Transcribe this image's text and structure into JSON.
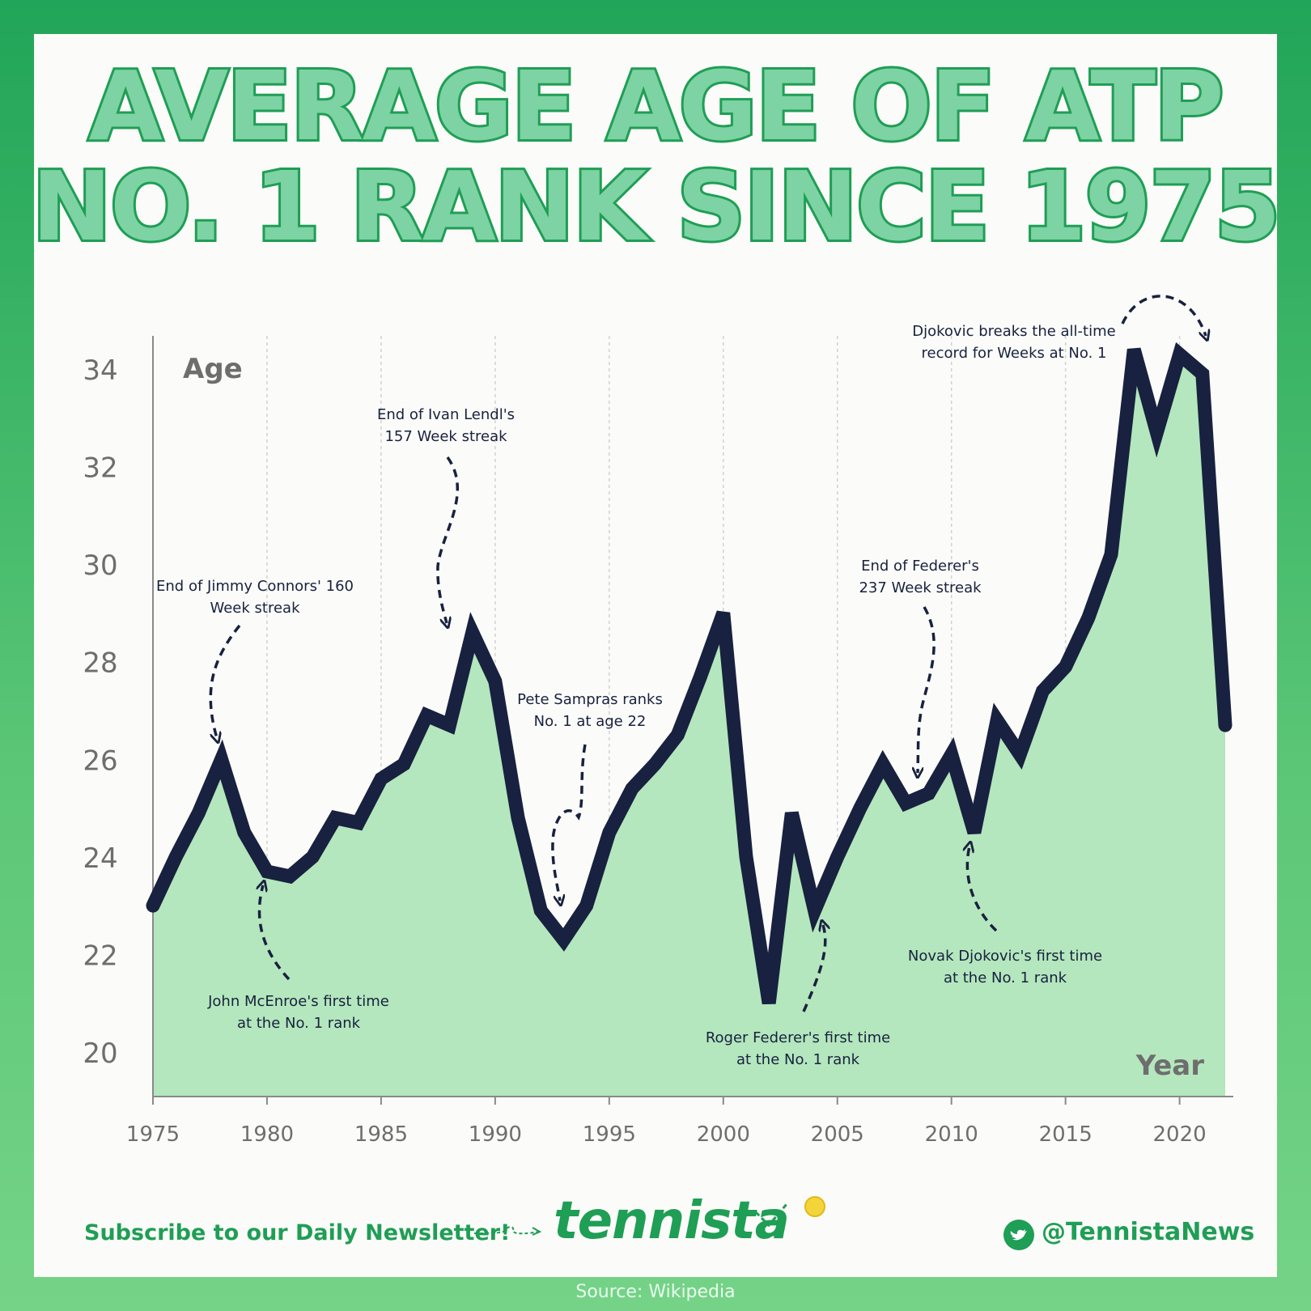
{
  "title_line1": "AVERAGE AGE OF ATP",
  "title_line2": "NO. 1 RANK SINCE 1975",
  "colors": {
    "line": "#18213f",
    "area": "#b4e7bd",
    "brand": "#1f9e55",
    "grid": "#cfd2cf",
    "axis_text": "#6e6e6e"
  },
  "chart_data": {
    "type": "area",
    "title": "AVERAGE AGE OF ATP NO. 1 RANK SINCE 1975",
    "xlabel": "Year",
    "ylabel": "Age",
    "xlim": [
      1975,
      2022
    ],
    "ylim": [
      19,
      34.7
    ],
    "x_ticks": [
      1975,
      1980,
      1985,
      1990,
      1995,
      2000,
      2005,
      2010,
      2015,
      2020
    ],
    "y_ticks": [
      20,
      22,
      24,
      26,
      28,
      30,
      32,
      34
    ],
    "series": [
      {
        "name": "Average age of ATP No. 1",
        "x": [
          1975,
          1976,
          1977,
          1978,
          1979,
          1980,
          1981,
          1982,
          1983,
          1984,
          1985,
          1986,
          1987,
          1988,
          1989,
          1990,
          1991,
          1992,
          1993,
          1994,
          1995,
          1996,
          1997,
          1998,
          1999,
          2000,
          2001,
          2002,
          2003,
          2004,
          2005,
          2006,
          2007,
          2008,
          2009,
          2010,
          2011,
          2012,
          2013,
          2014,
          2015,
          2016,
          2017,
          2018,
          2019,
          2020,
          2021,
          2022
        ],
        "y": [
          23.0,
          24.0,
          24.9,
          26.0,
          24.5,
          23.7,
          23.6,
          24.0,
          24.8,
          24.7,
          25.6,
          25.9,
          26.9,
          26.7,
          28.6,
          27.6,
          24.8,
          22.9,
          22.3,
          23.0,
          24.5,
          25.4,
          25.9,
          26.5,
          27.7,
          29.0,
          24.0,
          21.0,
          24.9,
          22.9,
          24.0,
          25.0,
          25.9,
          25.1,
          25.3,
          26.1,
          24.5,
          26.8,
          26.1,
          27.4,
          27.9,
          28.9,
          30.2,
          34.4,
          32.7,
          34.3,
          33.9,
          26.7
        ]
      }
    ],
    "annotations": [
      {
        "text_line1": "End of Jimmy Connors' 160",
        "text_line2": "Week streak",
        "year": 1978
      },
      {
        "text_line1": "John McEnroe's first time",
        "text_line2": "at the No. 1 rank",
        "year": 1980
      },
      {
        "text_line1": "End of Ivan Lendl's",
        "text_line2": "157 Week streak",
        "year": 1988
      },
      {
        "text_line1": "Pete Sampras ranks",
        "text_line2": "No. 1 at age 22",
        "year": 1993
      },
      {
        "text_line1": "Roger Federer's first time",
        "text_line2": "at the No. 1 rank",
        "year": 2004
      },
      {
        "text_line1": "End of Federer's",
        "text_line2": "237 Week streak",
        "year": 2008
      },
      {
        "text_line1": "Novak Djokovic's first time",
        "text_line2": "at the No. 1 rank",
        "year": 2011
      },
      {
        "text_line1": "Djokovic breaks the all-time",
        "text_line2": "record for Weeks at No. 1",
        "year": 2021
      }
    ]
  },
  "footer": {
    "subscribe": "Subscribe to our Daily Newsletter!",
    "brand": "tennista",
    "handle": "@TennistaNews",
    "source": "Source: Wikipedia"
  }
}
